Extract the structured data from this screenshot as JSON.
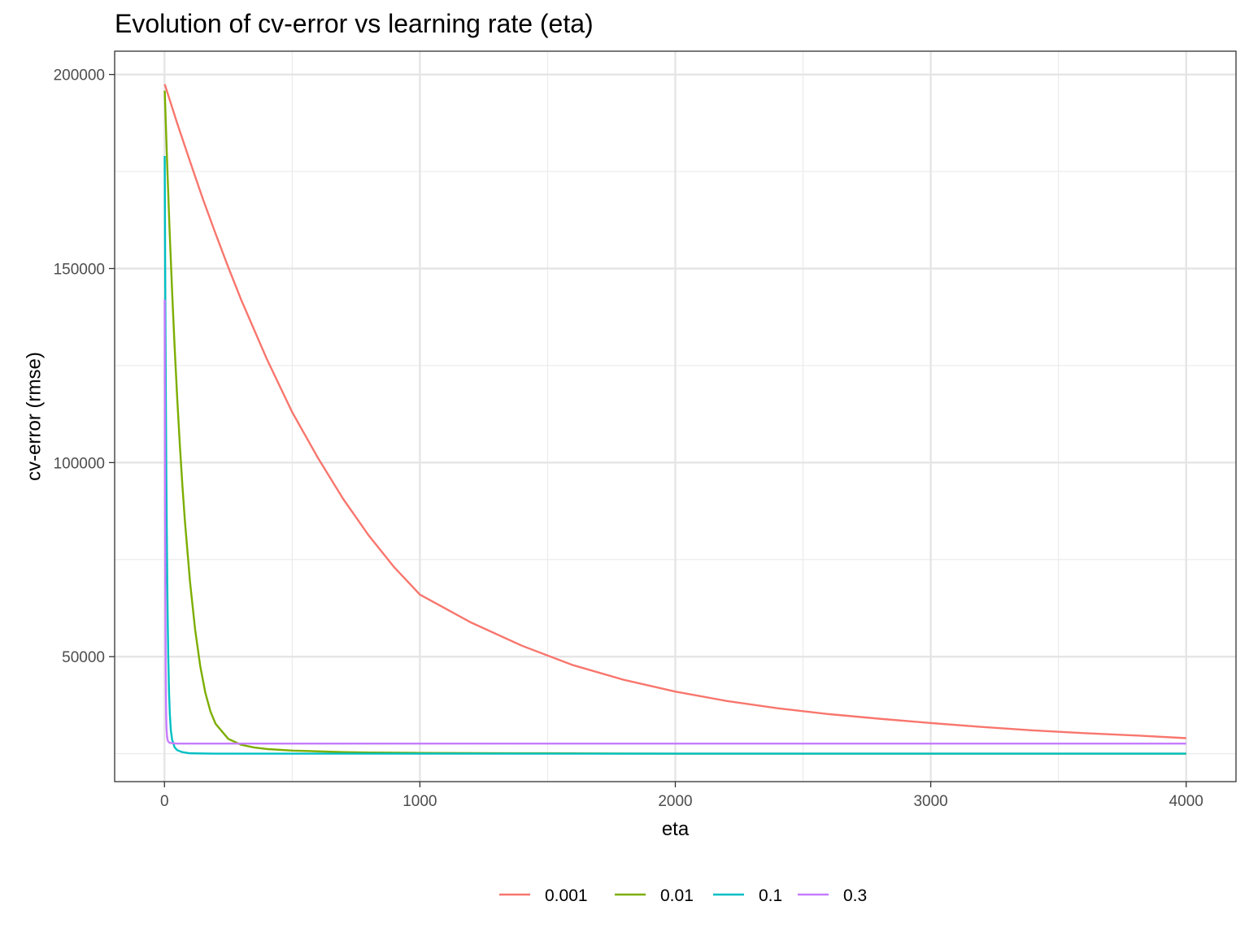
{
  "chart_data": {
    "type": "line",
    "title": "Evolution of cv-error vs learning rate (eta)",
    "xlabel": "eta",
    "ylabel": "cv-error (rmse)",
    "xlim": [
      -195,
      4195
    ],
    "ylim": [
      17800,
      206000
    ],
    "x_ticks": [
      0,
      1000,
      2000,
      3000,
      4000
    ],
    "x_tick_labels": [
      "0",
      "1000",
      "2000",
      "3000",
      "4000"
    ],
    "y_ticks": [
      50000,
      100000,
      150000,
      200000
    ],
    "y_tick_labels": [
      "50000",
      "100000",
      "150000",
      "200000"
    ],
    "grid": true,
    "legend_position": "bottom",
    "series": [
      {
        "name": "0.001",
        "color": "#F8766D",
        "x": [
          1,
          50,
          100,
          150,
          200,
          250,
          300,
          400,
          500,
          600,
          700,
          800,
          900,
          1000,
          1200,
          1400,
          1600,
          1800,
          2000,
          2200,
          2400,
          2600,
          2800,
          3000,
          3200,
          3400,
          3600,
          3800,
          4000
        ],
        "y": [
          197500,
          187400,
          177600,
          168000,
          159000,
          150300,
          142000,
          126800,
          113000,
          101300,
          90600,
          81200,
          73000,
          66000,
          58800,
          52800,
          47800,
          44000,
          41000,
          38600,
          36700,
          35200,
          34000,
          32900,
          31900,
          31000,
          30300,
          29700,
          29000
        ]
      },
      {
        "name": "0.01",
        "color": "#7CAE00",
        "x": [
          1,
          10,
          20,
          30,
          40,
          50,
          60,
          70,
          80,
          100,
          120,
          140,
          160,
          180,
          200,
          250,
          300,
          350,
          400,
          500,
          600,
          700,
          800,
          1000,
          1500,
          2000,
          3000,
          4000
        ],
        "y": [
          195800,
          178000,
          160000,
          144000,
          129500,
          116500,
          104800,
          94300,
          85000,
          69300,
          57000,
          47600,
          40700,
          35900,
          32700,
          28800,
          27300,
          26600,
          26200,
          25800,
          25600,
          25400,
          25300,
          25200,
          25100,
          25000,
          25000,
          25000
        ]
      },
      {
        "name": "0.1",
        "color": "#00BFC4",
        "x": [
          1,
          3,
          5,
          7,
          9,
          11,
          13,
          15,
          18,
          21,
          25,
          30,
          40,
          50,
          70,
          100,
          200,
          500,
          1000,
          2000,
          3000,
          4000
        ],
        "y": [
          179000,
          147000,
          121000,
          100000,
          83000,
          69000,
          58000,
          49500,
          40700,
          35200,
          31000,
          28600,
          26600,
          25900,
          25400,
          25100,
          25000,
          25000,
          25000,
          25000,
          25000,
          25000
        ]
      },
      {
        "name": "0.3",
        "color": "#C77CFF",
        "x": [
          1,
          2,
          3,
          4,
          5,
          6,
          7,
          8,
          10,
          12,
          15,
          20,
          30,
          50,
          100,
          500,
          1000,
          2000,
          3000,
          4000
        ],
        "y": [
          142000,
          103000,
          76000,
          58000,
          46000,
          38500,
          34000,
          31500,
          29600,
          28600,
          28100,
          27800,
          27700,
          27600,
          27600,
          27600,
          27600,
          27600,
          27600,
          27600
        ]
      }
    ]
  }
}
